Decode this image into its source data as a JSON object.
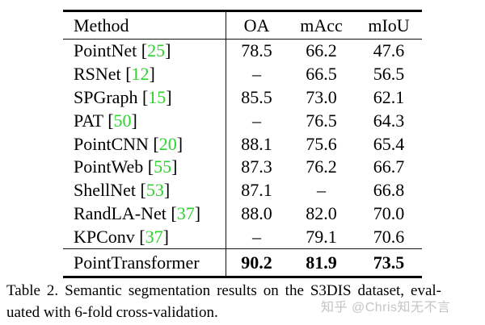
{
  "colors": {
    "citation_green": "#2cd32c",
    "watermark_gray": "#c5c5c5",
    "text": "#000000",
    "background": "#ffffff"
  },
  "table": {
    "headers": {
      "method": "Method",
      "oa": "OA",
      "macc": "mAcc",
      "miou": "mIoU"
    },
    "rows": [
      {
        "name": "PointNet",
        "cite_open": " [",
        "cite": "25",
        "cite_close": "]",
        "oa": "78.5",
        "macc": "66.2",
        "miou": "47.6"
      },
      {
        "name": "RSNet",
        "cite_open": " [",
        "cite": "12",
        "cite_close": "]",
        "oa": "–",
        "macc": "66.5",
        "miou": "56.5"
      },
      {
        "name": "SPGraph",
        "cite_open": " [",
        "cite": "15",
        "cite_close": "]",
        "oa": "85.5",
        "macc": "73.0",
        "miou": "62.1"
      },
      {
        "name": "PAT",
        "cite_open": " [",
        "cite": "50",
        "cite_close": "]",
        "oa": "–",
        "macc": "76.5",
        "miou": "64.3"
      },
      {
        "name": "PointCNN",
        "cite_open": " [",
        "cite": "20",
        "cite_close": "]",
        "oa": "88.1",
        "macc": "75.6",
        "miou": "65.4"
      },
      {
        "name": "PointWeb",
        "cite_open": " [",
        "cite": "55",
        "cite_close": "]",
        "oa": "87.3",
        "macc": "76.2",
        "miou": "66.7"
      },
      {
        "name": "ShellNet",
        "cite_open": " [",
        "cite": "53",
        "cite_close": "]",
        "oa": "87.1",
        "macc": "–",
        "miou": "66.8"
      },
      {
        "name": "RandLA-Net",
        "cite_open": " [",
        "cite": "37",
        "cite_close": "]",
        "oa": "88.0",
        "macc": "82.0",
        "miou": "70.0"
      },
      {
        "name": "KPConv",
        "cite_open": " [",
        "cite": "37",
        "cite_close": "]",
        "oa": "–",
        "macc": "79.1",
        "miou": "70.6"
      },
      {
        "name": "PointTransformer",
        "cite_open": "",
        "cite": "",
        "cite_close": "",
        "oa": "90.2",
        "macc": "81.9",
        "miou": "73.5",
        "bold_values": true
      }
    ]
  },
  "caption": {
    "line1": "Table 2. Semantic segmentation results on the S3DIS dataset, eval-",
    "line2": "uated with 6-fold cross-validation."
  },
  "watermark": {
    "text": "知乎 @Chris知无不言"
  }
}
